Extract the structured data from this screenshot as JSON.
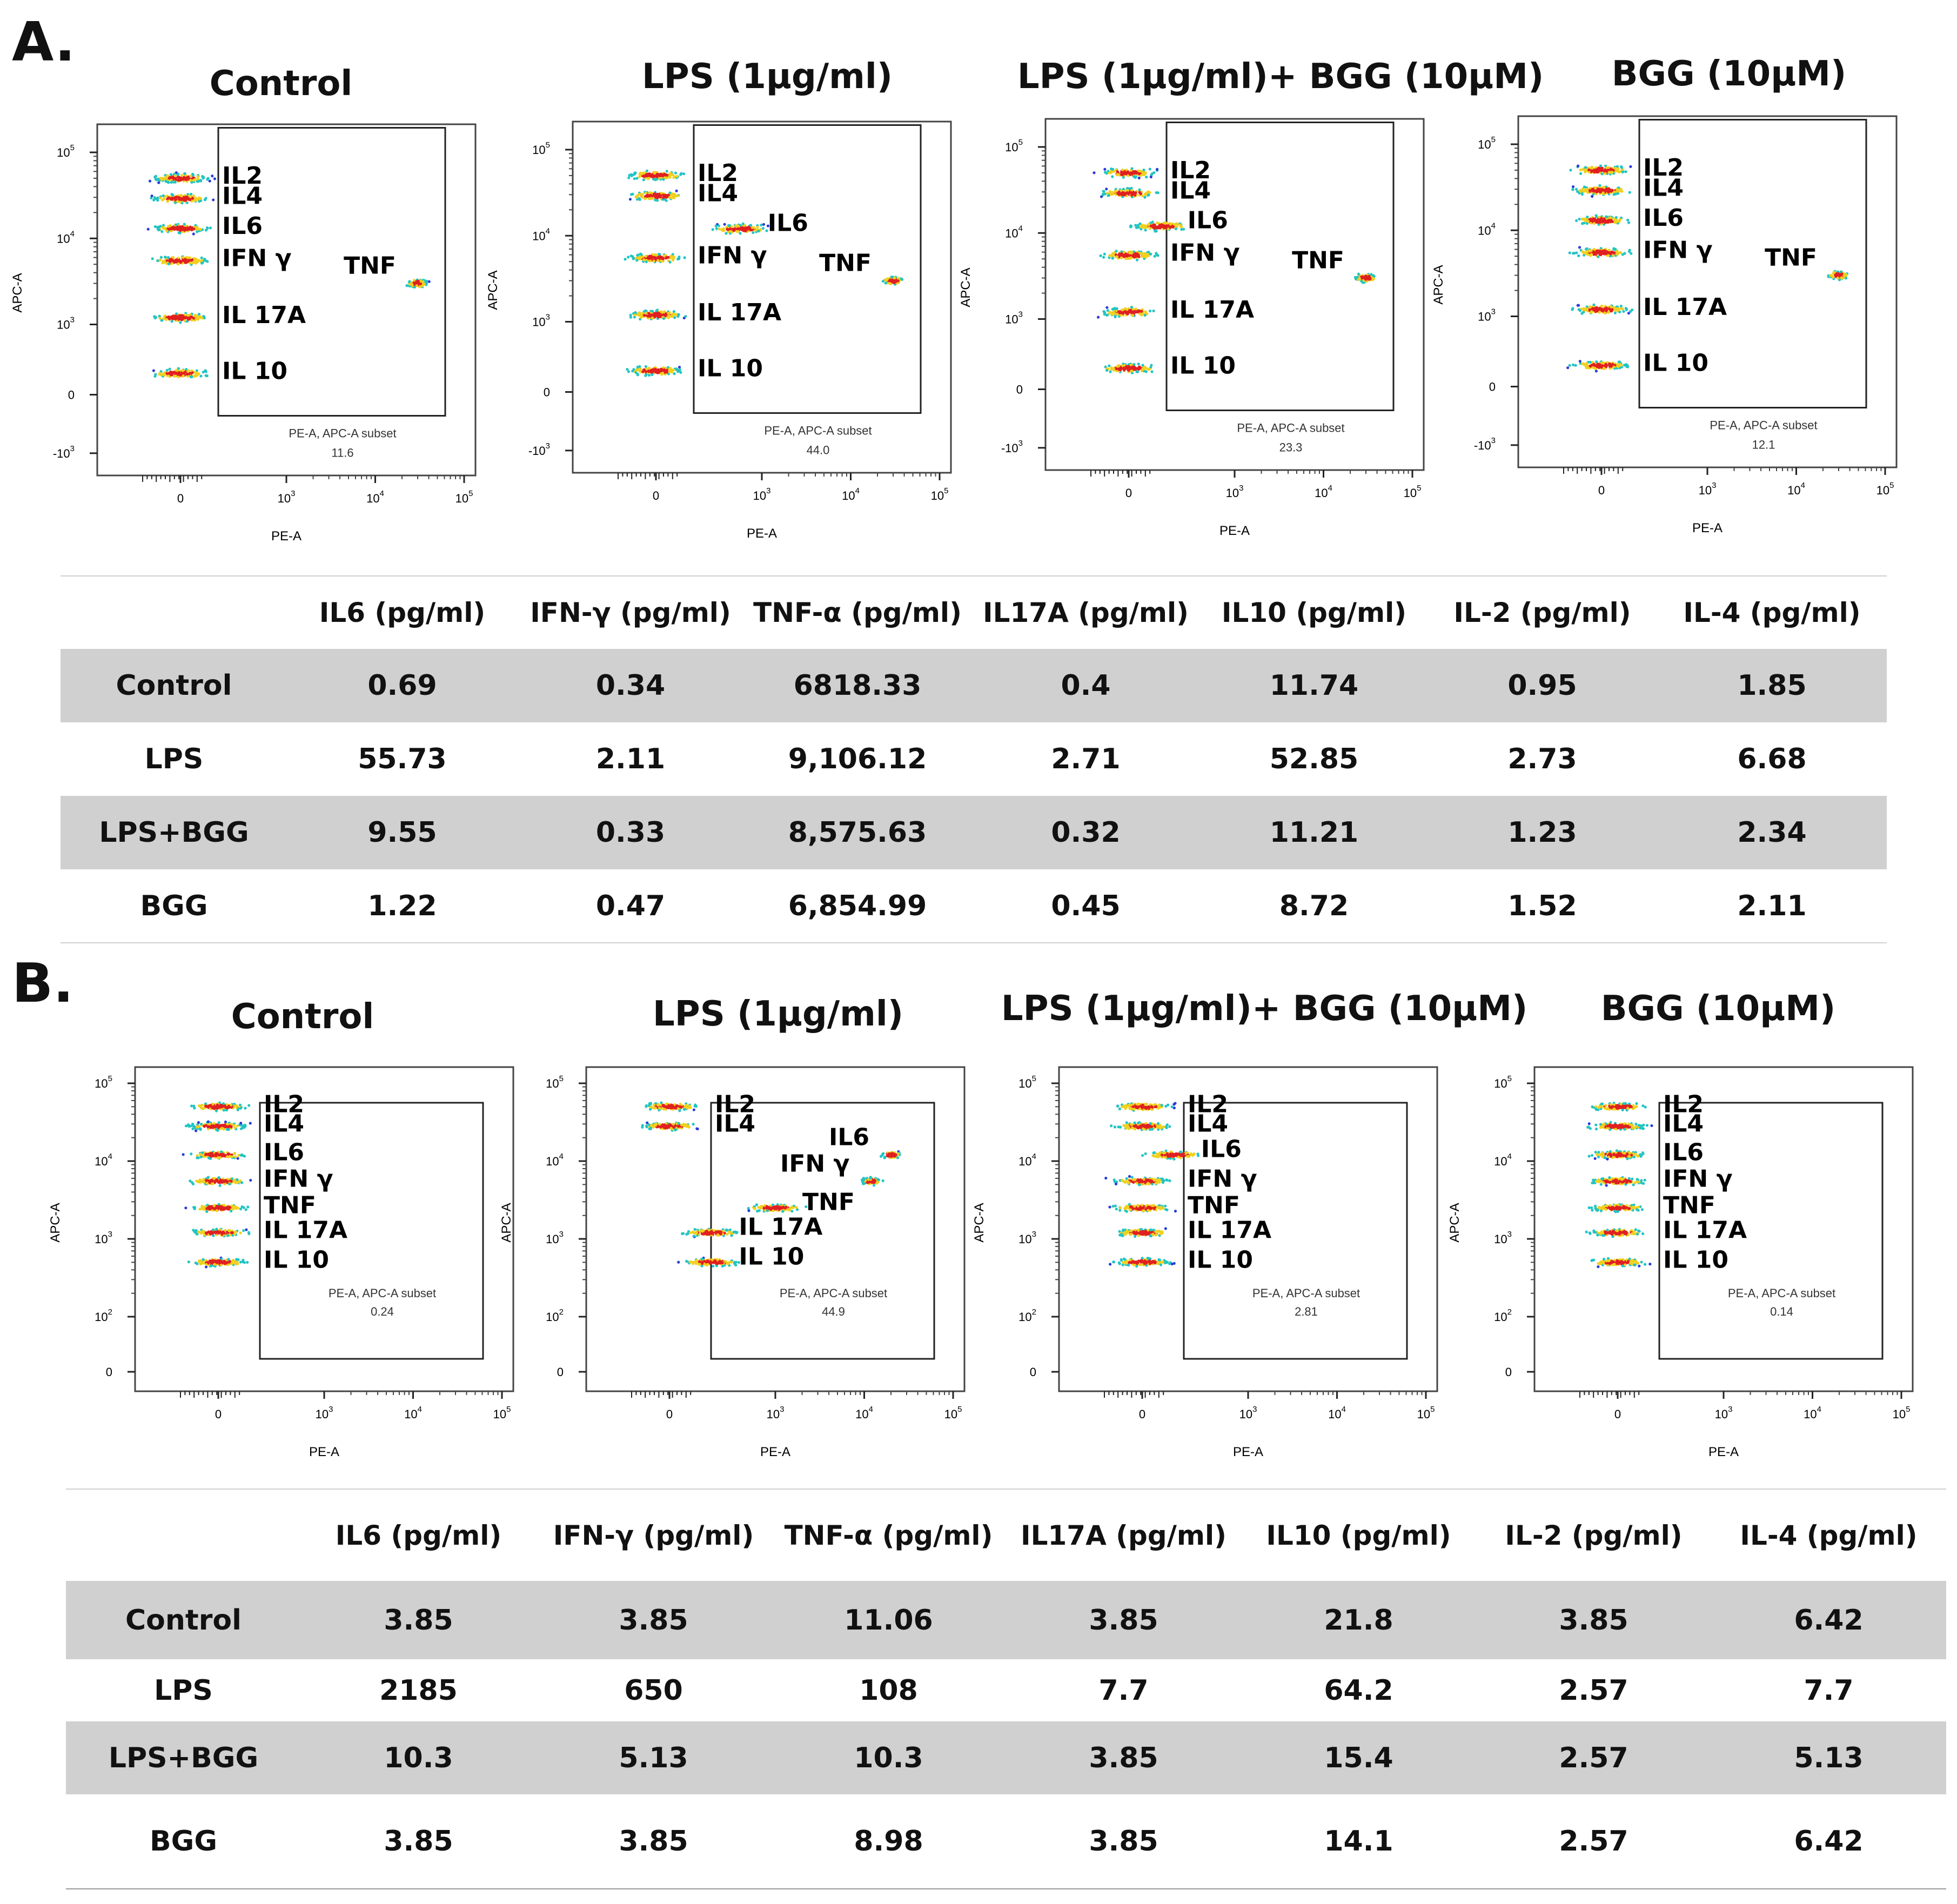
{
  "section_a": {
    "letter": "A.",
    "plots": [
      {
        "title": "Control",
        "gate_label": "PE-A, APC-A subset",
        "gate_value": "11.6"
      },
      {
        "title": "LPS (1μg/ml)",
        "gate_label": "PE-A, APC-A subset",
        "gate_value": "44.0"
      },
      {
        "title": "LPS (1μg/ml)+ BGG (10μM)",
        "gate_label": "PE-A, APC-A subset",
        "gate_value": "23.3"
      },
      {
        "title": "BGG (10μM)",
        "gate_label": "PE-A, APC-A subset",
        "gate_value": "12.1"
      }
    ],
    "table": {
      "headers": [
        "",
        "IL6 (pg/ml)",
        "IFN-γ (pg/ml)",
        "TNF-α (pg/ml)",
        "IL17A (pg/ml)",
        "IL10 (pg/ml)",
        "IL-2 (pg/ml)",
        "IL-4 (pg/ml)"
      ],
      "rows": [
        [
          "Control",
          "0.69",
          "0.34",
          "6818.33",
          "0.4",
          "11.74",
          "0.95",
          "1.85"
        ],
        [
          "LPS",
          "55.73",
          "2.11",
          "9,106.12",
          "2.71",
          "52.85",
          "2.73",
          "6.68"
        ],
        [
          "LPS+BGG",
          "9.55",
          "0.33",
          "8,575.63",
          "0.32",
          "11.21",
          "1.23",
          "2.34"
        ],
        [
          "BGG",
          "1.22",
          "0.47",
          "6,854.99",
          "0.45",
          "8.72",
          "1.52",
          "2.11"
        ]
      ]
    }
  },
  "section_b": {
    "letter": "B.",
    "plots": [
      {
        "title": "Control",
        "gate_label": "PE-A, APC-A subset",
        "gate_value": "0.24"
      },
      {
        "title": "LPS (1μg/ml)",
        "gate_label": "PE-A, APC-A subset",
        "gate_value": "44.9"
      },
      {
        "title": "LPS (1μg/ml)+ BGG (10μM)",
        "gate_label": "PE-A, APC-A subset",
        "gate_value": "2.81"
      },
      {
        "title": "BGG (10μM)",
        "gate_label": "PE-A, APC-A subset",
        "gate_value": "0.14"
      }
    ],
    "table": {
      "headers": [
        "",
        "IL6 (pg/ml)",
        "IFN-γ (pg/ml)",
        "TNF-α (pg/ml)",
        "IL17A (pg/ml)",
        "IL10 (pg/ml)",
        "IL-2 (pg/ml)",
        "IL-4 (pg/ml)"
      ],
      "rows": [
        [
          "Control",
          "3.85",
          "3.85",
          "11.06",
          "3.85",
          "21.8",
          "3.85",
          "6.42"
        ],
        [
          "LPS",
          "2185",
          "650",
          "108",
          "7.7",
          "64.2",
          "2.57",
          "7.7"
        ],
        [
          "LPS+BGG",
          "10.3",
          "5.13",
          "10.3",
          "3.85",
          "15.4",
          "2.57",
          "5.13"
        ],
        [
          "BGG",
          "3.85",
          "3.85",
          "8.98",
          "3.85",
          "14.1",
          "2.57",
          "6.42"
        ]
      ]
    }
  },
  "chart_data": {
    "type": "scatter",
    "xlabel": "PE-A",
    "ylabel": "APC-A",
    "x_ticks": [
      "0",
      "10^3",
      "10^4",
      "10^5"
    ],
    "y_ticks": [
      "-10^3",
      "0",
      "10^3",
      "10^4",
      "10^5"
    ],
    "y_ticks_b": [
      "0",
      "10^2",
      "10^3",
      "10^4",
      "10^5"
    ],
    "scale": "biexponential",
    "colors": {
      "low": "#2a3cd8",
      "mid": "#22c4c4",
      "high": "#e02020",
      "peak": "#f0d020"
    },
    "population_labels": [
      "IL2",
      "IL4",
      "IL6",
      "IFN γ",
      "TNF",
      "IL 17A",
      "IL 10"
    ],
    "panels": [
      {
        "section": "A",
        "title": "Control",
        "gate_percent": 11.6,
        "populations": [
          {
            "name": "IL2",
            "x": 0,
            "y": 50000
          },
          {
            "name": "IL4",
            "x": 0,
            "y": 29000
          },
          {
            "name": "IL6",
            "x": 0,
            "y": 13000
          },
          {
            "name": "IFN γ",
            "x": 0,
            "y": 5500
          },
          {
            "name": "TNF",
            "x": 30000,
            "y": 3000
          },
          {
            "name": "IL 17A",
            "x": 0,
            "y": 1200
          },
          {
            "name": "IL 10",
            "x": 0,
            "y": 300
          }
        ]
      },
      {
        "section": "A",
        "title": "LPS (1μg/ml)",
        "gate_percent": 44.0,
        "populations": [
          {
            "name": "IL2",
            "x": 0,
            "y": 50000
          },
          {
            "name": "IL4",
            "x": 0,
            "y": 29000
          },
          {
            "name": "IL6",
            "x": 800,
            "y": 12000
          },
          {
            "name": "IFN γ",
            "x": 0,
            "y": 5500
          },
          {
            "name": "TNF",
            "x": 30000,
            "y": 3000
          },
          {
            "name": "IL 17A",
            "x": 0,
            "y": 1200
          },
          {
            "name": "IL 10",
            "x": 0,
            "y": 300
          }
        ]
      },
      {
        "section": "A",
        "title": "LPS (1μg/ml)+ BGG (10μM)",
        "gate_percent": 23.3,
        "populations": [
          {
            "name": "IL2",
            "x": 0,
            "y": 50000
          },
          {
            "name": "IL4",
            "x": 0,
            "y": 29000
          },
          {
            "name": "IL6",
            "x": 300,
            "y": 12000
          },
          {
            "name": "IFN γ",
            "x": 0,
            "y": 5500
          },
          {
            "name": "TNF",
            "x": 30000,
            "y": 3000
          },
          {
            "name": "IL 17A",
            "x": 0,
            "y": 1200
          },
          {
            "name": "IL 10",
            "x": 0,
            "y": 300
          }
        ]
      },
      {
        "section": "A",
        "title": "BGG (10μM)",
        "gate_percent": 12.1,
        "populations": [
          {
            "name": "IL2",
            "x": 0,
            "y": 50000
          },
          {
            "name": "IL4",
            "x": 0,
            "y": 29000
          },
          {
            "name": "IL6",
            "x": 0,
            "y": 13000
          },
          {
            "name": "IFN γ",
            "x": 0,
            "y": 5500
          },
          {
            "name": "TNF",
            "x": 30000,
            "y": 3000
          },
          {
            "name": "IL 17A",
            "x": 0,
            "y": 1200
          },
          {
            "name": "IL 10",
            "x": 0,
            "y": 300
          }
        ]
      },
      {
        "section": "B",
        "title": "Control",
        "gate_percent": 0.24,
        "populations": [
          {
            "name": "IL2",
            "x": 0,
            "y": 50000
          },
          {
            "name": "IL4",
            "x": 0,
            "y": 28000
          },
          {
            "name": "IL6",
            "x": 0,
            "y": 12000
          },
          {
            "name": "IFN γ",
            "x": 0,
            "y": 5500
          },
          {
            "name": "TNF",
            "x": 0,
            "y": 2500
          },
          {
            "name": "IL 17A",
            "x": 0,
            "y": 1200
          },
          {
            "name": "IL 10",
            "x": 0,
            "y": 500
          }
        ]
      },
      {
        "section": "B",
        "title": "LPS (1μg/ml)",
        "gate_percent": 44.9,
        "populations": [
          {
            "name": "IL2",
            "x": 0,
            "y": 50000
          },
          {
            "name": "IL4",
            "x": 0,
            "y": 28000
          },
          {
            "name": "IL6",
            "x": 20000,
            "y": 12000
          },
          {
            "name": "IFN γ",
            "x": 12000,
            "y": 5500
          },
          {
            "name": "TNF",
            "x": 1000,
            "y": 2500
          },
          {
            "name": "IL 17A",
            "x": 400,
            "y": 1200
          },
          {
            "name": "IL 10",
            "x": 400,
            "y": 500
          }
        ]
      },
      {
        "section": "B",
        "title": "LPS (1μg/ml)+ BGG (10μM)",
        "gate_percent": 2.81,
        "populations": [
          {
            "name": "IL2",
            "x": 0,
            "y": 50000
          },
          {
            "name": "IL4",
            "x": 0,
            "y": 28000
          },
          {
            "name": "IL6",
            "x": 300,
            "y": 12000
          },
          {
            "name": "IFN γ",
            "x": 0,
            "y": 5500
          },
          {
            "name": "TNF",
            "x": 0,
            "y": 2500
          },
          {
            "name": "IL 17A",
            "x": 0,
            "y": 1200
          },
          {
            "name": "IL 10",
            "x": 0,
            "y": 500
          }
        ]
      },
      {
        "section": "B",
        "title": "BGG (10μM)",
        "gate_percent": 0.14,
        "populations": [
          {
            "name": "IL2",
            "x": 0,
            "y": 50000
          },
          {
            "name": "IL4",
            "x": 0,
            "y": 28000
          },
          {
            "name": "IL6",
            "x": 0,
            "y": 12000
          },
          {
            "name": "IFN γ",
            "x": 0,
            "y": 5500
          },
          {
            "name": "TNF",
            "x": 0,
            "y": 2500
          },
          {
            "name": "IL 17A",
            "x": 0,
            "y": 1200
          },
          {
            "name": "IL 10",
            "x": 0,
            "y": 500
          }
        ]
      }
    ]
  }
}
